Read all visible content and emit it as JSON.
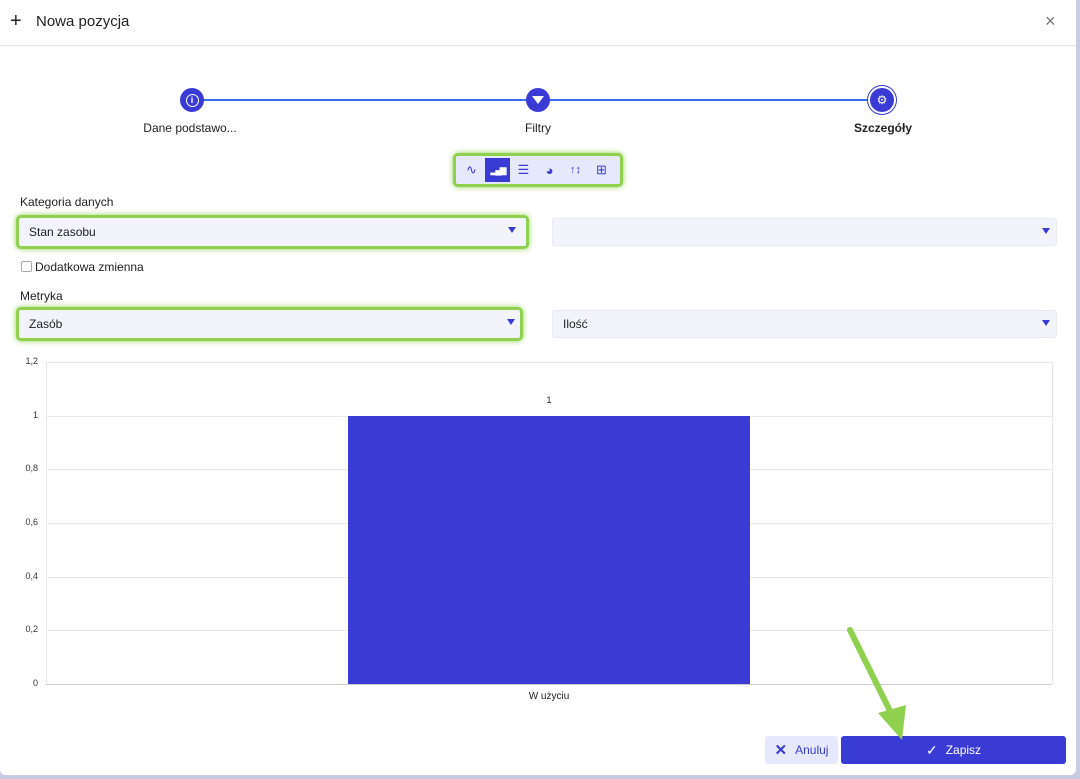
{
  "header": {
    "title": "Nowa pozycja",
    "add_icon": "+",
    "close_icon": "×"
  },
  "stepper": {
    "steps": [
      {
        "label": "Dane podstawo...",
        "icon": "i"
      },
      {
        "label": "Filtry",
        "icon": "filter"
      },
      {
        "label": "Szczegóły",
        "icon": "gears"
      }
    ]
  },
  "chart_types": [
    {
      "name": "line",
      "glyph": "∿"
    },
    {
      "name": "column",
      "glyph": "▂▄▆"
    },
    {
      "name": "bar",
      "glyph": "☰"
    },
    {
      "name": "pie",
      "glyph": "◕"
    },
    {
      "name": "sort",
      "glyph": "↑↕"
    },
    {
      "name": "table",
      "glyph": "⊞"
    }
  ],
  "form": {
    "category_label": "Kategoria danych",
    "category_value": "Stan zasobu",
    "category_second_value": "",
    "extra_variable_label": "Dodatkowa zmienna",
    "extra_variable_checked": false,
    "metric_label": "Metryka",
    "metric_value": "Zasób",
    "metric_second_value": "Ilość"
  },
  "chart_data": {
    "type": "bar",
    "categories": [
      "W użyciu"
    ],
    "values": [
      1
    ],
    "ylim": [
      0,
      1.2
    ],
    "yticks": [
      "0",
      "0,2",
      "0,4",
      "0,6",
      "0,8",
      "1",
      "1,2"
    ],
    "data_labels": [
      "1"
    ],
    "grid": true,
    "color": "#3a3ad4"
  },
  "footer": {
    "cancel_label": "Anuluj",
    "save_label": "Zapisz"
  }
}
